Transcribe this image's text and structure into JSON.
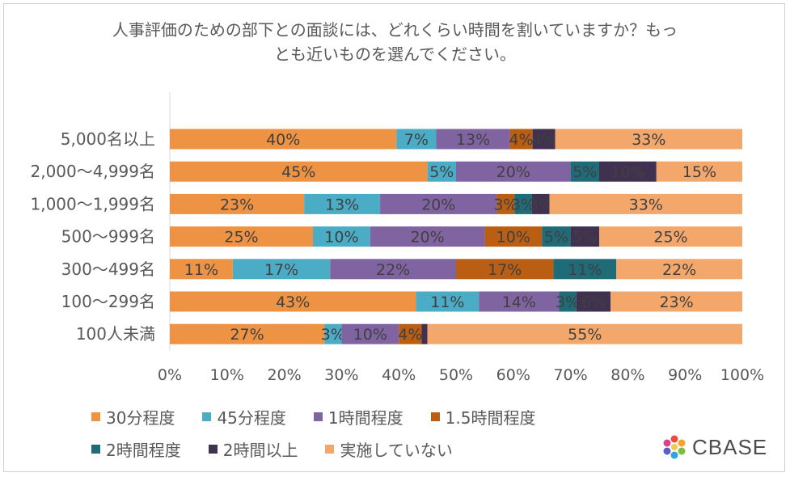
{
  "chart_data": {
    "type": "bar",
    "orientation": "horizontal",
    "stacked": true,
    "title_lines": [
      "人事評価のための部下との面談には、どれくらい時間を割いていますか？もっ",
      "とも近いものを選んでください。"
    ],
    "categories": [
      "5,000名以上",
      "2,000～4,999名",
      "1,000～1,999名",
      "500～999名",
      "300～499名",
      "100～299名",
      "100人未満"
    ],
    "series": [
      {
        "name": "30分程度",
        "color": "#ee9344",
        "values": [
          40,
          45,
          23,
          25,
          11,
          43,
          27
        ]
      },
      {
        "name": "45分程度",
        "color": "#4bacc6",
        "values": [
          7,
          5,
          13,
          10,
          17,
          11,
          3
        ]
      },
      {
        "name": "1時間程度",
        "color": "#8064a2",
        "values": [
          13,
          20,
          20,
          20,
          22,
          14,
          10
        ]
      },
      {
        "name": "1.5時間程度",
        "color": "#b95e12",
        "values": [
          4,
          0,
          3,
          10,
          17,
          0,
          4
        ]
      },
      {
        "name": "2時間程度",
        "color": "#1f6b78",
        "values": [
          0,
          5,
          3,
          5,
          11,
          3,
          0
        ]
      },
      {
        "name": "2時間以上",
        "color": "#403151",
        "values": [
          4,
          10,
          3,
          5,
          0,
          6,
          1
        ]
      },
      {
        "name": "実施していない",
        "color": "#f4a76a",
        "values": [
          33,
          15,
          33,
          25,
          22,
          23,
          55
        ]
      }
    ],
    "value_labels": [
      [
        "40%",
        "7%",
        "13%",
        "4%",
        "",
        "4%",
        "33%"
      ],
      [
        "45%",
        "5%",
        "20%",
        "",
        "5%",
        "10%",
        "15%"
      ],
      [
        "23%",
        "13%",
        "20%",
        "3%",
        "3%",
        "3%",
        "33%"
      ],
      [
        "25%",
        "10%",
        "20%",
        "10%",
        "5%",
        "5%",
        "25%"
      ],
      [
        "11%",
        "17%",
        "22%",
        "17%",
        "11%",
        "",
        "22%"
      ],
      [
        "43%",
        "11%",
        "14%",
        "",
        "3%",
        "6%",
        "23%"
      ],
      [
        "27%",
        "3%",
        "10%",
        "4%",
        "",
        "",
        "55%"
      ]
    ],
    "x_ticks": [
      "0%",
      "10%",
      "20%",
      "30%",
      "40%",
      "50%",
      "60%",
      "70%",
      "80%",
      "90%",
      "100%"
    ],
    "xlim": [
      0,
      100
    ],
    "legend_position": "bottom"
  },
  "brand": {
    "name": "CBASE"
  }
}
